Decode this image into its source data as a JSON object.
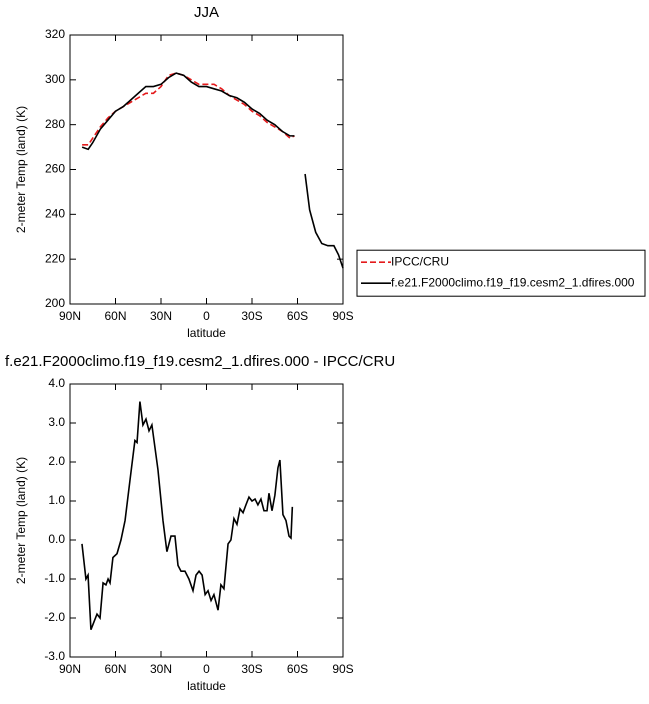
{
  "chart_data": [
    {
      "type": "line",
      "title": "JJA",
      "xlabel": "latitude",
      "ylabel": "2-meter Temp (land) (K)",
      "x": [
        82,
        78,
        75,
        70,
        65,
        60,
        55,
        50,
        45,
        40,
        35,
        30,
        25,
        20,
        15,
        10,
        5,
        0,
        -5,
        -10,
        -15,
        -20,
        -25,
        -30,
        -35,
        -40,
        -45,
        -50,
        -55,
        -58,
        -62,
        -65,
        -68,
        -72,
        -76,
        -80,
        -84,
        -87,
        -90
      ],
      "series": [
        {
          "name": "IPCC/CRU",
          "color": "#e41a1c",
          "dashed": true,
          "values": [
            271,
            271,
            274,
            279,
            283,
            286,
            288,
            290,
            292,
            294,
            294,
            297,
            302,
            303,
            302,
            300,
            298,
            298,
            298,
            296,
            293,
            291,
            289,
            286,
            284,
            281,
            279,
            277,
            274,
            275,
            null,
            null,
            null,
            null,
            null,
            null,
            null,
            null,
            null
          ]
        },
        {
          "name": "f.e21.F2000climo.f19_f19.cesm2_1.dfires.000",
          "color": "#000000",
          "dashed": false,
          "values": [
            270,
            269,
            272,
            278,
            282,
            286,
            288,
            291,
            294,
            297,
            297,
            298,
            301,
            303,
            302,
            299,
            297,
            297,
            296,
            295,
            293,
            292,
            290,
            287,
            285,
            282,
            280,
            277,
            275,
            275,
            null,
            258,
            242,
            232,
            227,
            226,
            226,
            222,
            216
          ]
        }
      ],
      "xlim": [
        90,
        -90
      ],
      "xticks": [
        {
          "value": 90,
          "label": "90N"
        },
        {
          "value": 60,
          "label": "60N"
        },
        {
          "value": 30,
          "label": "30N"
        },
        0,
        {
          "value": -30,
          "label": "30S"
        },
        {
          "value": -60,
          "label": "60S"
        },
        {
          "value": -90,
          "label": "90S"
        }
      ],
      "ylim": [
        200,
        320
      ],
      "yticks": [
        200,
        220,
        240,
        260,
        280,
        300,
        320
      ],
      "legend": "right"
    },
    {
      "type": "line",
      "title": "f.e21.F2000climo.f19_f19.cesm2_1.dfires.000 - IPCC/CRU",
      "xlabel": "latitude",
      "ylabel": "2-meter Temp (land) (K)",
      "x": [
        82.1,
        79.5,
        78.1,
        76.2,
        72.2,
        70.2,
        68.2,
        66.3,
        64.9,
        63.6,
        61.7,
        59.0,
        56.4,
        53.7,
        50.4,
        47.2,
        45.8,
        43.9,
        41.9,
        39.9,
        37.9,
        36.0,
        32.0,
        28.7,
        26.1,
        23.4,
        20.8,
        18.8,
        16.8,
        14.2,
        11.6,
        8.9,
        6.9,
        4.9,
        2.9,
        0.9,
        -1.0,
        -3.0,
        -4.9,
        -7.6,
        -9.5,
        -11.5,
        -14.2,
        -16.1,
        -18.1,
        -20.1,
        -22.1,
        -24.1,
        -26.0,
        -28.0,
        -30.0,
        -32.0,
        -33.9,
        -35.9,
        -37.9,
        -39.9,
        -41.2,
        -43.2,
        -45.1,
        -47.1,
        -48.4,
        -50.4,
        -52.4,
        -54.4,
        -55.7,
        -56.6
      ],
      "series": [
        {
          "name": "f.e21.F2000climo.f19_f19.cesm2_1.dfires.000 - IPCC/CRU",
          "color": "#000000",
          "dashed": false,
          "values": [
            -0.1,
            -1.0,
            -0.9,
            -2.3,
            -1.9,
            -2.0,
            -1.1,
            -1.15,
            -1.0,
            -1.1,
            -0.45,
            -0.35,
            0.0,
            0.5,
            1.55,
            2.55,
            2.5,
            3.55,
            2.95,
            3.1,
            2.8,
            2.95,
            1.8,
            0.5,
            -0.3,
            0.1,
            0.1,
            -0.65,
            -0.8,
            -0.8,
            -1.0,
            -1.3,
            -0.9,
            -0.8,
            -0.9,
            -1.4,
            -1.3,
            -1.55,
            -1.4,
            -1.8,
            -1.15,
            -1.25,
            -0.1,
            0.0,
            0.55,
            0.4,
            0.8,
            0.7,
            0.9,
            1.1,
            1.0,
            1.05,
            0.9,
            1.05,
            0.75,
            0.75,
            1.2,
            0.75,
            1.15,
            1.85,
            2.05,
            0.65,
            0.5,
            0.1,
            0.05,
            0.85
          ]
        }
      ],
      "xlim": [
        90,
        -90
      ],
      "xticks": [
        {
          "value": 90,
          "label": "90N"
        },
        {
          "value": 60,
          "label": "60N"
        },
        {
          "value": 30,
          "label": "30N"
        },
        0,
        {
          "value": -30,
          "label": "30S"
        },
        {
          "value": -60,
          "label": "60S"
        },
        {
          "value": -90,
          "label": "90S"
        }
      ],
      "ylim": [
        -3,
        4
      ],
      "yticks": [
        {
          "value": -3,
          "label": "-3.0"
        },
        {
          "value": -2,
          "label": "-2.0"
        },
        {
          "value": -1,
          "label": "-1.0"
        },
        {
          "value": 0,
          "label": "0.0"
        },
        {
          "value": 1,
          "label": "1.0"
        },
        {
          "value": 2,
          "label": "2.0"
        },
        {
          "value": 3,
          "label": "3.0"
        },
        {
          "value": 4,
          "label": "4.0"
        }
      ]
    }
  ]
}
